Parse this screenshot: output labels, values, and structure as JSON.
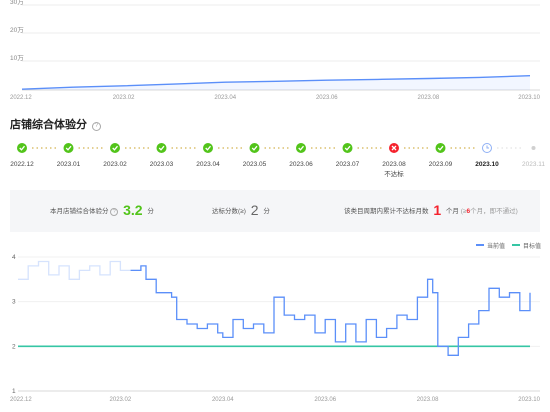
{
  "chart_data": [
    {
      "type": "area",
      "x": [
        "2022.12",
        "2023.01",
        "2023.02",
        "2023.03",
        "2023.04",
        "2023.05",
        "2023.06",
        "2023.07",
        "2023.08",
        "2023.09",
        "2023.10"
      ],
      "y_ticks": [
        "30万",
        "20万",
        "10万"
      ],
      "x_ticks": [
        "2022.12",
        "2023.02",
        "2023.04",
        "2023.06",
        "2023.08",
        "2023.10"
      ],
      "series": [
        {
          "values": [
            3000,
            10000,
            15000,
            21000,
            28000,
            31000,
            35000,
            38000,
            41000,
            45000,
            51000
          ]
        }
      ],
      "ylim": [
        0,
        300000
      ],
      "grid": true,
      "color": "#5b8ff9"
    },
    {
      "type": "line",
      "x_ticks": [
        "2022.12",
        "2023.02",
        "2023.04",
        "2023.06",
        "2023.08",
        "2023.10"
      ],
      "y_ticks": [
        "4",
        "3",
        "2",
        "1"
      ],
      "ylim": [
        1,
        4
      ],
      "grid": true,
      "legend_position": "top-right",
      "legend": [
        "当前值",
        "目标值"
      ],
      "series": [
        {
          "name": "当前值",
          "color": "#5b8ff9",
          "points": [
            [
              0,
              3.5
            ],
            [
              0.02,
              3.8
            ],
            [
              0.04,
              3.9
            ],
            [
              0.06,
              3.6
            ],
            [
              0.08,
              3.8
            ],
            [
              0.1,
              3.5
            ],
            [
              0.12,
              3.7
            ],
            [
              0.14,
              3.8
            ],
            [
              0.16,
              3.6
            ],
            [
              0.18,
              3.9
            ],
            [
              0.2,
              3.7
            ],
            [
              0.22,
              3.7
            ],
            [
              0.24,
              3.8
            ],
            [
              0.25,
              3.5
            ],
            [
              0.27,
              3.2
            ],
            [
              0.29,
              3.2
            ],
            [
              0.3,
              3.1
            ],
            [
              0.31,
              2.6
            ],
            [
              0.33,
              2.5
            ],
            [
              0.35,
              2.4
            ],
            [
              0.37,
              2.5
            ],
            [
              0.39,
              2.3
            ],
            [
              0.4,
              2.2
            ],
            [
              0.42,
              2.6
            ],
            [
              0.44,
              2.4
            ],
            [
              0.46,
              2.5
            ],
            [
              0.48,
              2.3
            ],
            [
              0.5,
              3.1
            ],
            [
              0.52,
              2.7
            ],
            [
              0.54,
              2.6
            ],
            [
              0.56,
              2.7
            ],
            [
              0.58,
              2.3
            ],
            [
              0.6,
              2.6
            ],
            [
              0.62,
              2.1
            ],
            [
              0.64,
              2.5
            ],
            [
              0.66,
              2.1
            ],
            [
              0.68,
              2.6
            ],
            [
              0.7,
              2.2
            ],
            [
              0.72,
              2.4
            ],
            [
              0.74,
              2.7
            ],
            [
              0.76,
              2.6
            ],
            [
              0.78,
              3.1
            ],
            [
              0.8,
              3.5
            ],
            [
              0.81,
              3.2
            ],
            [
              0.82,
              2.0
            ],
            [
              0.84,
              1.8
            ],
            [
              0.86,
              2.2
            ],
            [
              0.88,
              2.5
            ],
            [
              0.9,
              2.8
            ],
            [
              0.92,
              3.3
            ],
            [
              0.94,
              3.1
            ],
            [
              0.96,
              3.2
            ],
            [
              0.98,
              2.8
            ],
            [
              1,
              3.2
            ]
          ]
        },
        {
          "name": "目标值",
          "color": "#36c6a4",
          "points": [
            [
              0,
              2
            ],
            [
              1,
              2
            ]
          ]
        }
      ]
    }
  ],
  "section_title": "店铺综合体验分",
  "months": [
    {
      "label": "2022.12",
      "status": "pass"
    },
    {
      "label": "2023.01",
      "status": "pass"
    },
    {
      "label": "2023.02",
      "status": "pass"
    },
    {
      "label": "2023.03",
      "status": "pass"
    },
    {
      "label": "2023.04",
      "status": "pass"
    },
    {
      "label": "2023.05",
      "status": "pass"
    },
    {
      "label": "2023.06",
      "status": "pass"
    },
    {
      "label": "2023.07",
      "status": "pass"
    },
    {
      "label": "2023.08",
      "status": "fail",
      "sublabel": "不达标"
    },
    {
      "label": "2023.09",
      "status": "pass"
    },
    {
      "label": "2023.10",
      "status": "current"
    },
    {
      "label": "2023.11",
      "status": "future"
    }
  ],
  "stats": {
    "current_label": "本月店铺综合体验分",
    "current_value": "3.2",
    "current_unit": "分",
    "target_label": "达标分数(≥)",
    "target_value": "2",
    "target_unit": "分",
    "fail_label": "该类目周期内累计不达标月数",
    "fail_value": "1",
    "fail_unit": "个月",
    "fail_note_prefix": "(≥",
    "fail_note_num": "6",
    "fail_note_suffix": "个月，即不通过)"
  },
  "colors": {
    "accent_blue": "#5b8ff9",
    "pass_green": "#52c41a",
    "fail_red": "#f5222d",
    "target_teal": "#36c6a4"
  },
  "icons": {
    "pass": "check-circle-icon",
    "fail": "close-circle-icon",
    "current": "clock-icon",
    "future": "dot-icon"
  }
}
